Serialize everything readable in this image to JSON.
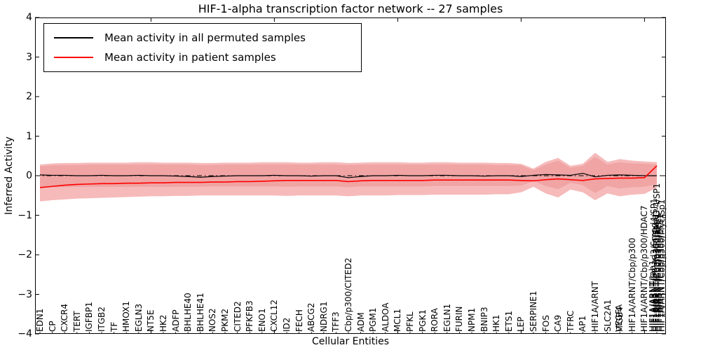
{
  "title": "HIF-1-alpha transcription factor network -- 27 samples",
  "legend": {
    "items": [
      {
        "label": "Mean activity in all permuted samples",
        "color": "#000000"
      },
      {
        "label": "Mean activity in patient samples",
        "color": "#ff0000"
      }
    ]
  },
  "axes": {
    "xlabel": "Cellular Entities",
    "ylabel": "Inferred Activity",
    "ylim": [
      -4,
      4
    ],
    "ytick_values": [
      4,
      3,
      2,
      1,
      0,
      -1,
      -2,
      -3,
      -4
    ],
    "ytick_labels": [
      "4",
      "3",
      "2",
      "1",
      "0",
      "−1",
      "−2",
      "−3",
      "−4"
    ]
  },
  "colors": {
    "zero_line": "#000000",
    "permuted_line": "#000000",
    "patient_line": "#ff0000",
    "patient_band": "#f6baba",
    "permuted_band": "#f0a4a4"
  },
  "chart_data": {
    "type": "line",
    "title": "HIF-1-alpha transcription factor network -- 27 samples",
    "xlabel": "Cellular Entities",
    "ylabel": "Inferred Activity",
    "ylim": [
      -4,
      4
    ],
    "grid": false,
    "legend_position": "upper left",
    "zero_reference_line": 0,
    "entities": [
      "EDN1",
      "CP",
      "CXCR4",
      "TERT",
      "IGFBP1",
      "ITGB2",
      "TF",
      "HMOX1",
      "EGLN3",
      "NT5E",
      "HK2",
      "ADFP",
      "BHLHE40",
      "BHLHE41",
      "NOS2",
      "PKM2",
      "CITED2",
      "PFKFB3",
      "ENO1",
      "CXCL12",
      "ID2",
      "FECH",
      "ABCG2",
      "NDRG1",
      "TFF3",
      "Cbp/p300/CITED2",
      "ADM",
      "PGM1",
      "ALDOA",
      "MCL1",
      "PFKL",
      "PGK1",
      "RORA",
      "EGLN1",
      "FURIN",
      "NPM1",
      "BNIP3",
      "HK1",
      "ETS1",
      "LEP",
      "SERPINE1",
      "FOS",
      "CA9",
      "TFRC",
      "AP1",
      "HIF1A/ARNT",
      "SLC2A1",
      "ITGB4",
      "HIF1A/ARNT/Cbp/p300",
      "HIF1A/ARNT/Cbp/p300/HDAC7",
      "HIF1A/ARNT/Cbp/p300/SMAD-4/SP1"
    ],
    "extra_overlapping_labels": [
      {
        "index": 47,
        "labels": [
          "VEGFA"
        ]
      },
      {
        "index": 50,
        "labels": [
          "HIF1A/ARNT/Cbp/p300/Src-1",
          "HIF1A/ARNT/Cbp/p300/Ref-1",
          "HIF1A/ARNT/Smad3/Smad4/SP1",
          "HIF1A/ARNT/Cbp/p300/ETS1",
          "HIF1A/ARNT/Jab1",
          "HIF1A/ARNT/Cbp/p300/Myc/Sp1"
        ]
      }
    ],
    "series": [
      {
        "name": "Mean activity in all permuted samples",
        "color": "#000000",
        "values": [
          0.02,
          0.01,
          0.01,
          0.0,
          0.0,
          0.01,
          0.0,
          0.0,
          0.01,
          0.0,
          0.0,
          -0.01,
          -0.02,
          -0.04,
          -0.02,
          -0.01,
          0.0,
          0.0,
          0.0,
          0.01,
          0.0,
          0.0,
          -0.01,
          0.0,
          0.0,
          -0.05,
          -0.02,
          0.0,
          0.0,
          0.01,
          0.0,
          0.0,
          0.01,
          0.01,
          0.0,
          0.0,
          -0.01,
          0.0,
          0.0,
          -0.02,
          0.01,
          0.03,
          0.02,
          0.01,
          0.06,
          -0.03,
          0.01,
          0.02,
          0.01,
          0.0,
          0.0
        ]
      },
      {
        "name": "Mean activity in patient samples",
        "color": "#ff0000",
        "values": [
          -0.3,
          -0.27,
          -0.24,
          -0.22,
          -0.21,
          -0.2,
          -0.2,
          -0.19,
          -0.19,
          -0.18,
          -0.18,
          -0.17,
          -0.17,
          -0.17,
          -0.16,
          -0.16,
          -0.15,
          -0.15,
          -0.14,
          -0.13,
          -0.12,
          -0.12,
          -0.12,
          -0.12,
          -0.12,
          -0.15,
          -0.13,
          -0.12,
          -0.12,
          -0.12,
          -0.12,
          -0.12,
          -0.11,
          -0.11,
          -0.11,
          -0.11,
          -0.11,
          -0.11,
          -0.11,
          -0.12,
          -0.13,
          -0.1,
          -0.08,
          -0.1,
          -0.12,
          -0.08,
          -0.07,
          -0.06,
          -0.06,
          -0.05,
          0.25
        ]
      }
    ],
    "bands": [
      {
        "name": "patient-std-band",
        "color": "#f6baba",
        "upper": [
          0.28,
          0.31,
          0.32,
          0.32,
          0.33,
          0.33,
          0.33,
          0.33,
          0.34,
          0.34,
          0.33,
          0.33,
          0.33,
          0.32,
          0.32,
          0.33,
          0.33,
          0.33,
          0.34,
          0.34,
          0.34,
          0.33,
          0.33,
          0.34,
          0.34,
          0.32,
          0.33,
          0.34,
          0.34,
          0.34,
          0.33,
          0.33,
          0.34,
          0.34,
          0.33,
          0.33,
          0.33,
          0.32,
          0.32,
          0.3,
          0.18,
          0.35,
          0.45,
          0.25,
          0.3,
          0.58,
          0.35,
          0.42,
          0.38,
          0.36,
          0.34
        ],
        "lower": [
          -0.65,
          -0.62,
          -0.6,
          -0.58,
          -0.57,
          -0.56,
          -0.55,
          -0.54,
          -0.53,
          -0.52,
          -0.52,
          -0.51,
          -0.51,
          -0.5,
          -0.5,
          -0.5,
          -0.5,
          -0.5,
          -0.5,
          -0.5,
          -0.51,
          -0.5,
          -0.5,
          -0.5,
          -0.5,
          -0.52,
          -0.5,
          -0.5,
          -0.5,
          -0.49,
          -0.49,
          -0.49,
          -0.48,
          -0.48,
          -0.48,
          -0.48,
          -0.48,
          -0.47,
          -0.47,
          -0.42,
          -0.28,
          -0.45,
          -0.55,
          -0.35,
          -0.42,
          -0.62,
          -0.45,
          -0.52,
          -0.48,
          -0.46,
          -0.3
        ]
      },
      {
        "name": "permuted-std-band",
        "color": "#f0a4a4",
        "upper": [
          0.24,
          0.26,
          0.27,
          0.27,
          0.28,
          0.28,
          0.28,
          0.28,
          0.28,
          0.28,
          0.28,
          0.28,
          0.28,
          0.27,
          0.27,
          0.28,
          0.28,
          0.28,
          0.28,
          0.28,
          0.28,
          0.28,
          0.28,
          0.28,
          0.28,
          0.27,
          0.28,
          0.28,
          0.28,
          0.28,
          0.28,
          0.28,
          0.28,
          0.28,
          0.28,
          0.28,
          0.28,
          0.27,
          0.27,
          0.26,
          0.14,
          0.28,
          0.38,
          0.2,
          0.25,
          0.48,
          0.28,
          0.34,
          0.31,
          0.3,
          0.28
        ],
        "lower": [
          -0.3,
          -0.29,
          -0.29,
          -0.28,
          -0.28,
          -0.28,
          -0.28,
          -0.28,
          -0.28,
          -0.28,
          -0.28,
          -0.28,
          -0.28,
          -0.28,
          -0.27,
          -0.27,
          -0.27,
          -0.27,
          -0.27,
          -0.27,
          -0.28,
          -0.27,
          -0.27,
          -0.27,
          -0.27,
          -0.29,
          -0.27,
          -0.27,
          -0.27,
          -0.27,
          -0.27,
          -0.27,
          -0.26,
          -0.26,
          -0.26,
          -0.26,
          -0.26,
          -0.26,
          -0.26,
          -0.25,
          -0.14,
          -0.26,
          -0.34,
          -0.18,
          -0.24,
          -0.44,
          -0.26,
          -0.32,
          -0.29,
          -0.28,
          -0.2
        ]
      }
    ]
  }
}
